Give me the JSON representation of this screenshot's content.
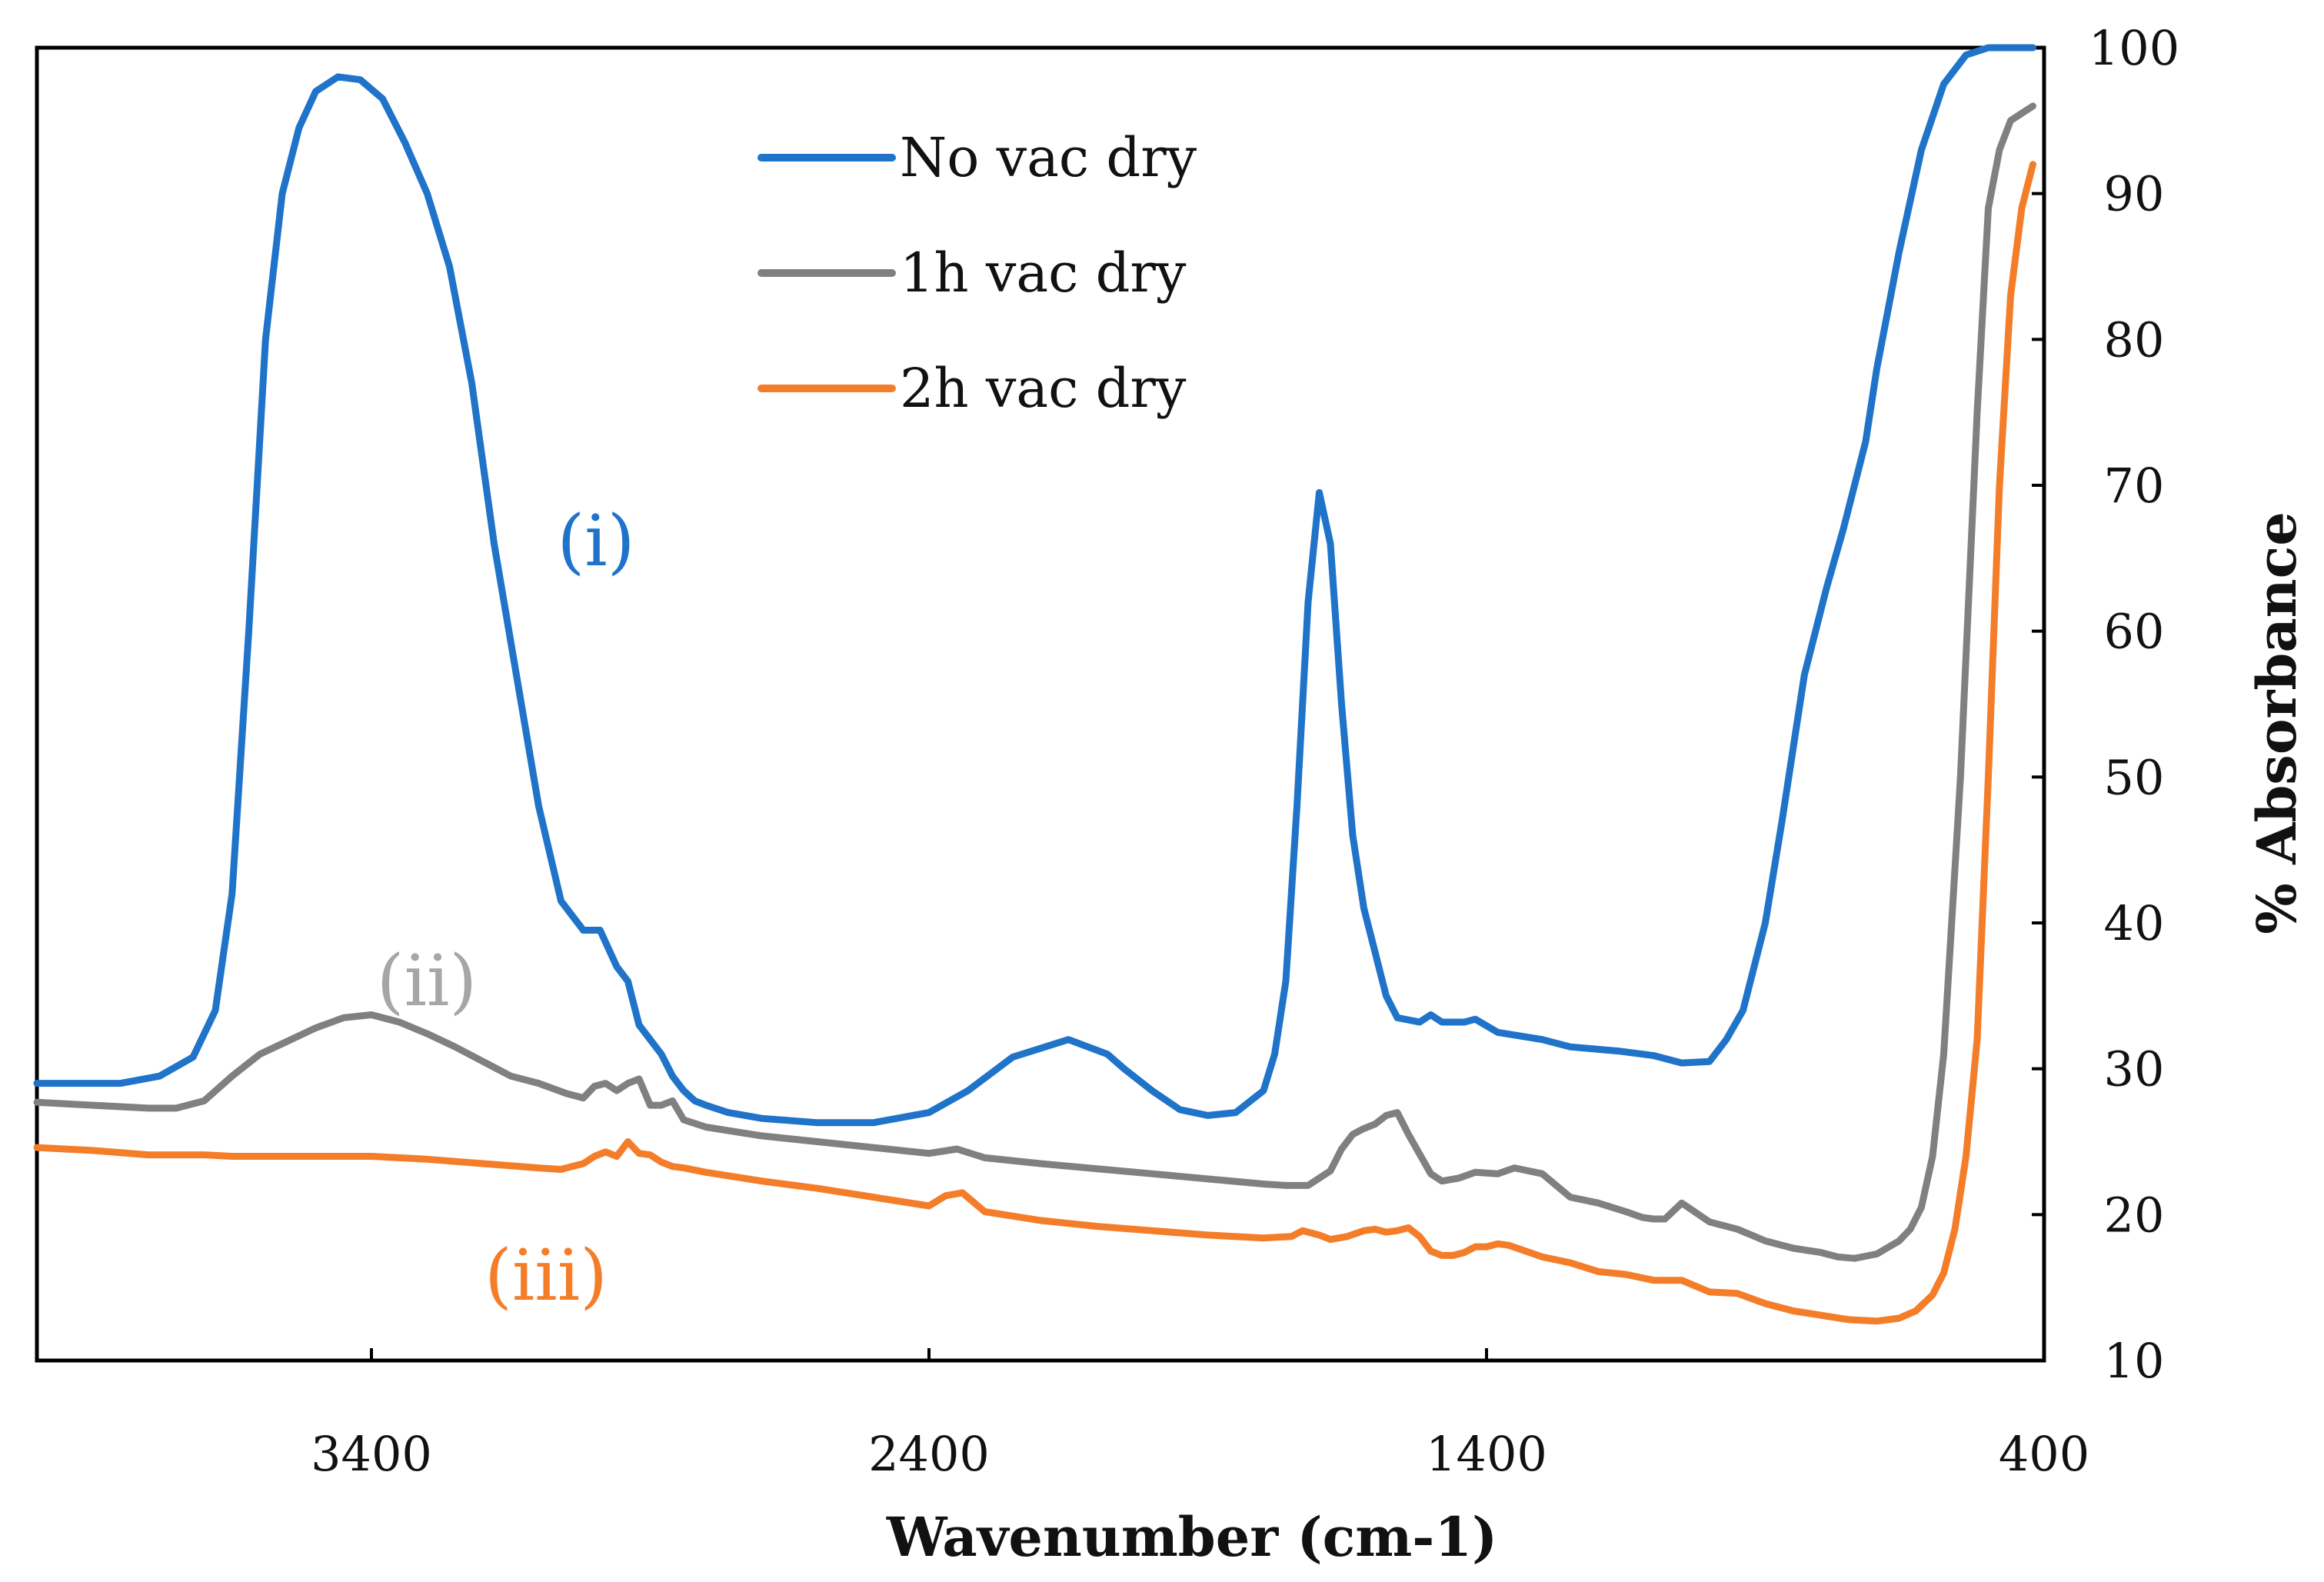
{
  "chart_data": {
    "type": "line",
    "title": "",
    "xlabel": "Wavenumber (cm-1)",
    "ylabel": "% Absorbance",
    "xlim": [
      4000,
      400
    ],
    "ylim": [
      10,
      100
    ],
    "x_reversed": true,
    "y_axis_side": "right",
    "grid": false,
    "legend_position": "top-center",
    "xticks": [
      3400,
      2400,
      1400,
      400
    ],
    "yticks": [
      10,
      20,
      30,
      40,
      50,
      60,
      70,
      80,
      90,
      100
    ],
    "series": [
      {
        "name": "No vac dry",
        "color": "#1f73c9",
        "x": [
          4000,
          3850,
          3780,
          3720,
          3680,
          3650,
          3620,
          3590,
          3560,
          3530,
          3500,
          3460,
          3420,
          3380,
          3340,
          3300,
          3260,
          3220,
          3180,
          3140,
          3100,
          3060,
          3020,
          2990,
          2960,
          2940,
          2920,
          2900,
          2880,
          2860,
          2840,
          2820,
          2800,
          2760,
          2700,
          2600,
          2500,
          2400,
          2330,
          2250,
          2150,
          2080,
          2050,
          2000,
          1950,
          1900,
          1850,
          1800,
          1780,
          1760,
          1740,
          1720,
          1700,
          1680,
          1660,
          1640,
          1620,
          1600,
          1580,
          1560,
          1520,
          1500,
          1480,
          1440,
          1420,
          1380,
          1300,
          1250,
          1160,
          1100,
          1050,
          1000,
          970,
          940,
          900,
          870,
          830,
          790,
          760,
          740,
          720,
          700,
          660,
          620,
          580,
          540,
          500,
          480,
          460,
          440,
          420
        ],
        "values": [
          29,
          29,
          29.5,
          30.8,
          34,
          42,
          60,
          80,
          90,
          94.5,
          97,
          98,
          97.8,
          96.5,
          93.5,
          90,
          85,
          77,
          66,
          57,
          48,
          41.5,
          39.5,
          39.5,
          37,
          36,
          33,
          32,
          31,
          29.5,
          28.5,
          27.8,
          27.5,
          27,
          26.6,
          26.3,
          26.3,
          27,
          28.5,
          30.8,
          32,
          31,
          30,
          28.5,
          27.2,
          26.8,
          27,
          28.5,
          31,
          36,
          48,
          62,
          69.5,
          66,
          55,
          46,
          41,
          38,
          35,
          33.5,
          33.2,
          33.7,
          33.2,
          33.2,
          33.4,
          32.5,
          32,
          31.5,
          31.2,
          30.9,
          30.4,
          30.5,
          32,
          34,
          40,
          47,
          57,
          63,
          67,
          70,
          73,
          78,
          86,
          93,
          97.5,
          99.5,
          100,
          100,
          100,
          100,
          100
        ]
      },
      {
        "name": "1h vac dry",
        "color": "#808080",
        "x": [
          4000,
          3900,
          3800,
          3750,
          3700,
          3650,
          3600,
          3500,
          3450,
          3400,
          3350,
          3300,
          3250,
          3200,
          3150,
          3100,
          3050,
          3020,
          3000,
          2980,
          2960,
          2940,
          2920,
          2900,
          2880,
          2860,
          2840,
          2800,
          2700,
          2600,
          2400,
          2350,
          2300,
          2200,
          2000,
          1800,
          1760,
          1720,
          1700,
          1680,
          1660,
          1640,
          1620,
          1600,
          1580,
          1560,
          1540,
          1500,
          1480,
          1450,
          1420,
          1380,
          1350,
          1300,
          1250,
          1200,
          1150,
          1120,
          1100,
          1080,
          1050,
          1000,
          950,
          900,
          850,
          800,
          770,
          740,
          700,
          660,
          640,
          620,
          600,
          580,
          550,
          520,
          500,
          480,
          460,
          440,
          420
        ],
        "values": [
          27.7,
          27.5,
          27.3,
          27.3,
          27.8,
          29.5,
          31,
          32.8,
          33.5,
          33.7,
          33.2,
          32.4,
          31.5,
          30.5,
          29.5,
          29,
          28.3,
          28,
          28.8,
          29,
          28.5,
          29,
          29.3,
          27.5,
          27.5,
          27.8,
          26.5,
          26,
          25.4,
          25,
          24.2,
          24.5,
          23.9,
          23.5,
          22.8,
          22.1,
          22,
          22,
          22.5,
          23,
          24.5,
          25.5,
          25.9,
          26.2,
          26.8,
          27,
          25.5,
          22.8,
          22.3,
          22.5,
          22.9,
          22.8,
          23.2,
          22.8,
          21.2,
          20.8,
          20.2,
          19.8,
          19.7,
          19.7,
          20.8,
          19.5,
          19,
          18.2,
          17.7,
          17.4,
          17.1,
          17,
          17.3,
          18.2,
          19,
          20.5,
          24,
          31,
          50,
          75,
          89,
          93,
          95,
          95.5,
          96
        ]
      },
      {
        "name": "2h vac dry",
        "color": "#f47d2a",
        "x": [
          4000,
          3900,
          3800,
          3700,
          3650,
          3600,
          3500,
          3400,
          3300,
          3200,
          3100,
          3060,
          3040,
          3020,
          3000,
          2980,
          2960,
          2940,
          2920,
          2900,
          2880,
          2860,
          2840,
          2800,
          2700,
          2600,
          2500,
          2400,
          2370,
          2340,
          2300,
          2250,
          2200,
          2100,
          2000,
          1900,
          1800,
          1750,
          1730,
          1700,
          1680,
          1650,
          1620,
          1600,
          1580,
          1560,
          1540,
          1520,
          1500,
          1480,
          1460,
          1440,
          1420,
          1400,
          1380,
          1360,
          1300,
          1250,
          1200,
          1150,
          1100,
          1050,
          1000,
          950,
          900,
          850,
          800,
          750,
          700,
          660,
          630,
          600,
          580,
          560,
          540,
          520,
          500,
          480,
          460,
          440,
          420
        ],
        "values": [
          24.6,
          24.4,
          24.1,
          24.1,
          24,
          24,
          24,
          24,
          23.8,
          23.5,
          23.2,
          23.1,
          23.3,
          23.5,
          24,
          24.3,
          24,
          25,
          24.2,
          24.1,
          23.6,
          23.3,
          23.2,
          22.9,
          22.3,
          21.8,
          21.2,
          20.6,
          21.3,
          21.5,
          20.2,
          19.9,
          19.6,
          19.2,
          18.9,
          18.6,
          18.4,
          18.5,
          18.9,
          18.6,
          18.3,
          18.5,
          18.9,
          19,
          18.8,
          18.9,
          19.1,
          18.5,
          17.5,
          17.2,
          17.2,
          17.4,
          17.8,
          17.8,
          18,
          17.9,
          17.1,
          16.7,
          16.1,
          15.9,
          15.5,
          15.5,
          14.7,
          14.6,
          13.9,
          13.4,
          13.1,
          12.8,
          12.7,
          12.9,
          13.4,
          14.5,
          16,
          19,
          24,
          32,
          50,
          70,
          83,
          89,
          92
        ]
      }
    ],
    "annotations": [
      {
        "text": "(i)",
        "color": "#1f73c9"
      },
      {
        "text": "(ii)",
        "color": "#a6a6a6"
      },
      {
        "text": "(iii)",
        "color": "#f47d2a"
      }
    ]
  }
}
